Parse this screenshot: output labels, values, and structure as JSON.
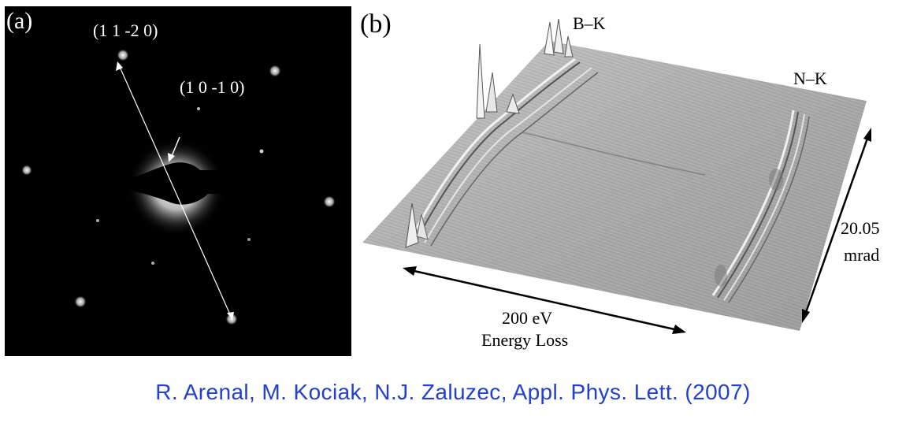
{
  "panel_a": {
    "label": "(a)",
    "index_1": "(1 1 -2 0)",
    "index_2": "(1 0 -1 0)"
  },
  "panel_b": {
    "label": "(b)",
    "edge_1": "B–K",
    "edge_2": "N–K",
    "angle_value": "20.05",
    "angle_unit": "mrad",
    "energy_value": "200 eV",
    "energy_label": "Energy Loss"
  },
  "caption": "R. Arenal, M. Kociak, N.J. Zaluzec, Appl. Phys. Lett. (2007)"
}
